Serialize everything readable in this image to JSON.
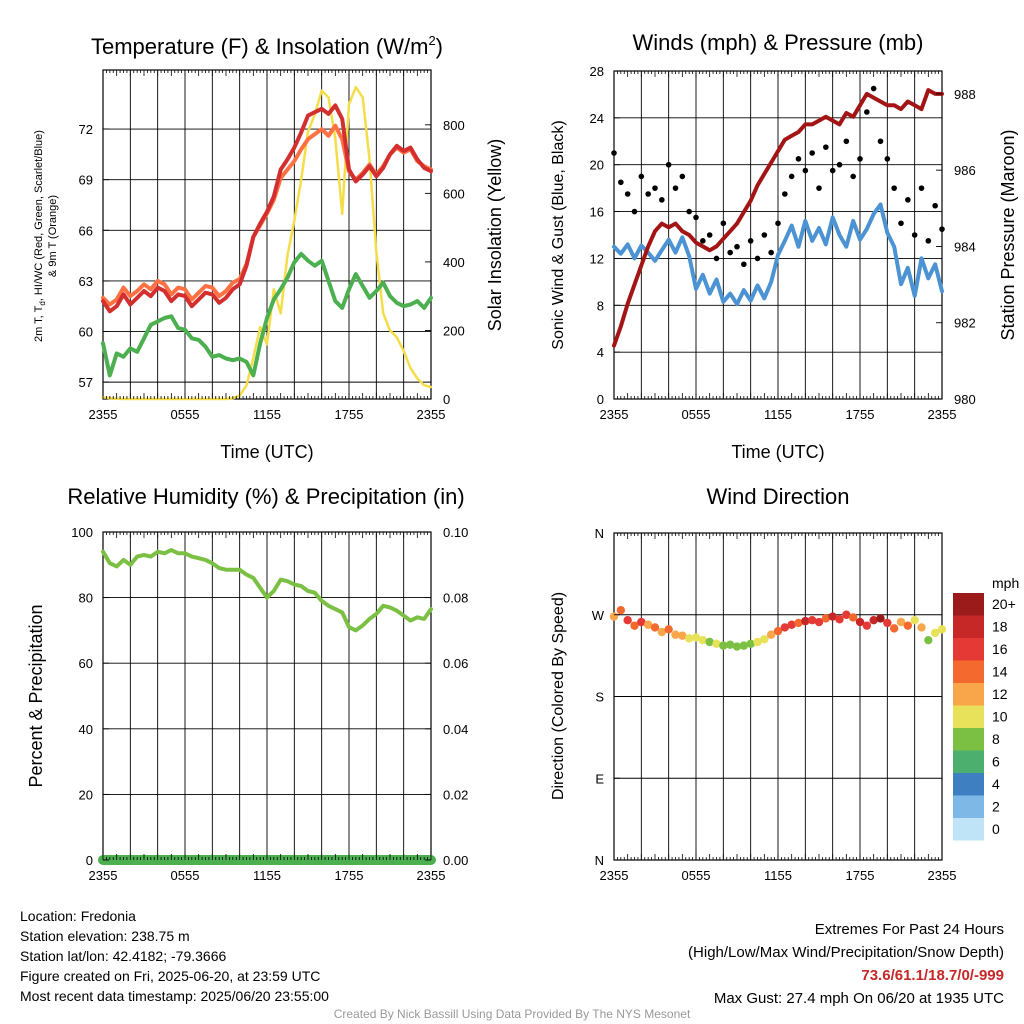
{
  "colors": {
    "temp": "#d32f2f",
    "dewpoint": "#4caf50",
    "heat_index": "#ff7043",
    "nine_m_temp": "#ff8c1a",
    "solar": "#f5dd4a",
    "wind": "#4b93d2",
    "gust": "#000000",
    "pressure": "#a31515",
    "rh": "#7bc043",
    "precip": "#4caf50"
  },
  "time_ticks": [
    "2355",
    "0555",
    "1155",
    "1755",
    "2355"
  ],
  "time_axis_label": "Time (UTC)",
  "chart_data": [
    {
      "type": "line",
      "title": "Temperature (F) & Insolation (W/m",
      "title_sup": "2",
      "title_close": ")",
      "xlabel": "Time (UTC)",
      "ylabel": "2m T, T",
      "ylabel_sub": "d",
      "ylabel_rest": ", HI/WC (Red, Green, Scarlet/Blue)",
      "ylabel_line2": "& 9m T (Orange)",
      "y2label": "Solar Insolation (Yellow)",
      "ylim": [
        56,
        75.5
      ],
      "yticks": [
        57,
        60,
        63,
        66,
        69,
        72
      ],
      "y2lim": [
        0,
        960
      ],
      "y2ticks": [
        0,
        200,
        400,
        600,
        800
      ],
      "x_hours": [
        0,
        0.5,
        1,
        1.5,
        2,
        2.5,
        3,
        3.5,
        4,
        4.5,
        5,
        5.5,
        6,
        6.5,
        7,
        7.5,
        8,
        8.5,
        9,
        9.5,
        10,
        10.5,
        11,
        11.5,
        12,
        12.5,
        13,
        13.5,
        14,
        14.5,
        15,
        15.5,
        16,
        16.5,
        17,
        17.5,
        18,
        18.5,
        19,
        19.5,
        20,
        20.5,
        21,
        21.5,
        22,
        22.5,
        23,
        23.5,
        24
      ],
      "series": [
        {
          "name": "2m T",
          "axis": "left",
          "colorKey": "temp",
          "width": 4,
          "values": [
            61.8,
            61.2,
            61.5,
            62.2,
            61.6,
            62.0,
            62.4,
            62.1,
            62.6,
            62.4,
            61.8,
            62.2,
            62.1,
            61.5,
            61.9,
            62.3,
            62.2,
            61.7,
            62.0,
            62.5,
            62.8,
            63.9,
            65.6,
            66.4,
            67.1,
            68.0,
            69.6,
            70.2,
            70.9,
            71.8,
            72.8,
            73.0,
            73.2,
            72.9,
            73.4,
            72.6,
            69.6,
            68.9,
            69.3,
            69.8,
            69.2,
            69.7,
            70.5,
            71.0,
            70.7,
            70.9,
            70.2,
            69.7,
            69.5
          ]
        },
        {
          "name": "Heat Index",
          "axis": "left",
          "colorKey": "heat_index",
          "width": 4,
          "values": [
            62.0,
            61.6,
            61.9,
            62.6,
            62.1,
            62.4,
            62.8,
            62.5,
            63.0,
            62.8,
            62.2,
            62.6,
            62.5,
            61.9,
            62.3,
            62.7,
            62.6,
            62.1,
            62.4,
            62.9,
            63.1,
            64.0,
            65.6,
            66.3,
            67.0,
            67.8,
            69.1,
            69.6,
            70.1,
            70.8,
            71.4,
            71.7,
            72.0,
            71.6,
            72.2,
            71.4,
            69.5,
            69.0,
            69.4,
            69.9,
            69.3,
            69.8,
            70.5,
            70.9,
            70.6,
            70.8,
            70.1,
            69.8,
            69.6
          ]
        },
        {
          "name": "Dewpoint",
          "axis": "left",
          "colorKey": "dewpoint",
          "width": 4,
          "values": [
            59.3,
            57.4,
            58.7,
            58.5,
            59.0,
            58.8,
            59.6,
            60.4,
            60.6,
            60.8,
            60.9,
            60.2,
            60.1,
            59.6,
            59.5,
            59.1,
            58.5,
            58.6,
            58.4,
            58.3,
            58.4,
            58.2,
            57.4,
            59.3,
            60.8,
            61.9,
            62.5,
            63.2,
            64.1,
            64.6,
            64.2,
            63.9,
            64.2,
            63.0,
            61.8,
            61.4,
            62.5,
            63.4,
            62.7,
            62.0,
            62.4,
            62.9,
            62.1,
            61.7,
            61.5,
            61.6,
            61.8,
            61.4,
            62.0
          ]
        },
        {
          "name": "Solar",
          "axis": "right",
          "colorKey": "solar",
          "width": 2.5,
          "values": [
            5,
            2,
            1,
            0,
            0,
            0,
            0,
            0,
            0,
            0,
            0,
            0,
            0,
            0,
            0,
            0,
            0,
            0,
            0,
            2,
            10,
            40,
            120,
            210,
            160,
            320,
            250,
            420,
            520,
            640,
            780,
            830,
            900,
            880,
            760,
            540,
            860,
            910,
            880,
            700,
            430,
            250,
            200,
            180,
            140,
            90,
            60,
            40,
            35
          ]
        }
      ]
    },
    {
      "type": "line",
      "title": "Winds (mph) & Pressure (mb)",
      "xlabel": "Time (UTC)",
      "ylabel": "Sonic Wind & Gust (Blue, Black)",
      "y2label": "Station Pressure (Maroon)",
      "ylim": [
        0,
        28
      ],
      "yticks": [
        0,
        4,
        8,
        12,
        16,
        20,
        24,
        28
      ],
      "y2lim": [
        980,
        988.6
      ],
      "y2ticks": [
        980,
        982,
        984,
        986,
        988
      ],
      "x_hours": [
        0,
        0.5,
        1,
        1.5,
        2,
        2.5,
        3,
        3.5,
        4,
        4.5,
        5,
        5.5,
        6,
        6.5,
        7,
        7.5,
        8,
        8.5,
        9,
        9.5,
        10,
        10.5,
        11,
        11.5,
        12,
        12.5,
        13,
        13.5,
        14,
        14.5,
        15,
        15.5,
        16,
        16.5,
        17,
        17.5,
        18,
        18.5,
        19,
        19.5,
        20,
        20.5,
        21,
        21.5,
        22,
        22.5,
        23,
        23.5,
        24
      ],
      "series": [
        {
          "name": "Sonic Wind",
          "axis": "left",
          "colorKey": "wind",
          "width": 4,
          "values": [
            13.0,
            12.4,
            13.2,
            12.0,
            13.1,
            12.5,
            11.8,
            12.7,
            13.6,
            12.5,
            13.8,
            12.2,
            9.4,
            10.6,
            9.0,
            10.2,
            8.3,
            9.0,
            8.1,
            9.3,
            8.4,
            9.7,
            8.6,
            10.0,
            12.3,
            13.5,
            14.8,
            13.0,
            15.2,
            13.5,
            14.6,
            13.2,
            15.5,
            14.0,
            13.0,
            15.2,
            13.6,
            14.5,
            15.8,
            16.6,
            14.2,
            13.0,
            9.8,
            11.2,
            8.8,
            12.0,
            10.3,
            11.5,
            9.2
          ]
        },
        {
          "name": "Gust",
          "axis": "left",
          "colorKey": "gust",
          "mode": "dots",
          "values": [
            21.0,
            18.5,
            17.5,
            16.0,
            19.0,
            17.5,
            18.0,
            17.0,
            20.0,
            18.0,
            19.0,
            16.0,
            15.5,
            13.5,
            14.0,
            12.0,
            15.0,
            12.5,
            13.0,
            11.5,
            13.5,
            12.0,
            14.0,
            12.5,
            15.0,
            17.5,
            19.0,
            20.5,
            19.5,
            21.0,
            18.0,
            21.5,
            19.5,
            20.0,
            22.0,
            19.0,
            20.5,
            24.5,
            26.5,
            22.0,
            20.5,
            18.0,
            15.0,
            17.0,
            14.0,
            18.0,
            13.5,
            16.5,
            14.5
          ]
        },
        {
          "name": "Pressure",
          "axis": "right",
          "colorKey": "pressure",
          "width": 4,
          "values": [
            981.4,
            981.9,
            982.5,
            983.0,
            983.5,
            984.0,
            984.4,
            984.6,
            984.5,
            984.6,
            984.4,
            984.3,
            984.1,
            984.0,
            983.9,
            984.0,
            984.2,
            984.4,
            984.6,
            984.9,
            985.2,
            985.6,
            985.9,
            986.2,
            986.5,
            986.8,
            986.9,
            987.0,
            987.2,
            987.2,
            987.3,
            987.4,
            987.3,
            987.2,
            987.5,
            987.4,
            987.7,
            988.0,
            987.9,
            987.8,
            987.7,
            987.7,
            987.6,
            987.8,
            987.7,
            987.6,
            988.1,
            988.0,
            988.0
          ]
        }
      ]
    },
    {
      "type": "line",
      "title": "Relative Humidity (%) & Precipitation (in)",
      "xlabel": "",
      "ylabel": "Percent & Precipitation",
      "ylim": [
        0,
        100
      ],
      "yticks": [
        0,
        20,
        40,
        60,
        80,
        100
      ],
      "y2lim": [
        0,
        0.1
      ],
      "y2ticks": [
        "0.00",
        "0.02",
        "0.04",
        "0.06",
        "0.08",
        "0.10"
      ],
      "x_hours": [
        0,
        0.5,
        1,
        1.5,
        2,
        2.5,
        3,
        3.5,
        4,
        4.5,
        5,
        5.5,
        6,
        6.5,
        7,
        7.5,
        8,
        8.5,
        9,
        9.5,
        10,
        10.5,
        11,
        11.5,
        12,
        12.5,
        13,
        13.5,
        14,
        14.5,
        15,
        15.5,
        16,
        16.5,
        17,
        17.5,
        18,
        18.5,
        19,
        19.5,
        20,
        20.5,
        21,
        21.5,
        22,
        22.5,
        23,
        23.5,
        24
      ],
      "series": [
        {
          "name": "RH",
          "axis": "left",
          "colorKey": "rh",
          "width": 4,
          "values": [
            94.0,
            90.5,
            89.5,
            91.5,
            90.0,
            92.5,
            93.0,
            92.5,
            94.0,
            93.5,
            94.5,
            93.5,
            93.5,
            92.5,
            92.0,
            91.5,
            90.5,
            89.0,
            88.5,
            88.5,
            88.5,
            87.0,
            86.0,
            83.0,
            80.0,
            82.0,
            85.5,
            85.0,
            84.0,
            83.5,
            82.0,
            81.5,
            79.0,
            77.5,
            76.5,
            75.5,
            71.0,
            70.0,
            71.5,
            73.5,
            75.0,
            77.5,
            77.0,
            76.0,
            74.5,
            73.0,
            74.0,
            73.5,
            76.5
          ]
        },
        {
          "name": "Precipitation",
          "axis": "left",
          "colorKey": "precip",
          "width": 10,
          "values": [
            0,
            0,
            0,
            0,
            0,
            0,
            0,
            0,
            0,
            0,
            0,
            0,
            0,
            0,
            0,
            0,
            0,
            0,
            0,
            0,
            0,
            0,
            0,
            0,
            0,
            0,
            0,
            0,
            0,
            0,
            0,
            0,
            0,
            0,
            0,
            0,
            0,
            0,
            0,
            0,
            0,
            0,
            0,
            0,
            0,
            0,
            0,
            0,
            0
          ]
        }
      ]
    },
    {
      "type": "scatter",
      "title": "Wind Direction",
      "xlabel": "",
      "ylabel": "Direction (Colored By Speed)",
      "ylim": [
        0,
        360
      ],
      "yticks": [
        "N",
        "E",
        "S",
        "W",
        "N"
      ],
      "x_hours": [
        0,
        0.5,
        1,
        1.5,
        2,
        2.5,
        3,
        3.5,
        4,
        4.5,
        5,
        5.5,
        6,
        6.5,
        7,
        7.5,
        8,
        8.5,
        9,
        9.5,
        10,
        10.5,
        11,
        11.5,
        12,
        12.5,
        13,
        13.5,
        14,
        14.5,
        15,
        15.5,
        16,
        16.5,
        17,
        17.5,
        18,
        18.5,
        19,
        19.5,
        20,
        20.5,
        21,
        21.5,
        22,
        22.5,
        23,
        23.5,
        24
      ],
      "direction_deg": [
        268,
        275,
        264,
        258,
        262,
        259,
        256,
        251,
        254,
        248,
        247,
        244,
        245,
        242,
        240,
        238,
        236,
        237,
        235,
        236,
        238,
        240,
        243,
        248,
        252,
        256,
        259,
        261,
        263,
        264,
        262,
        266,
        268,
        265,
        270,
        267,
        262,
        258,
        264,
        266,
        261,
        255,
        262,
        258,
        264,
        256,
        242,
        250,
        254
      ],
      "speed_mph": [
        12,
        14,
        16,
        13,
        15,
        12,
        14,
        12,
        13,
        11,
        12,
        10,
        9,
        10,
        8,
        9,
        8,
        7,
        8,
        8,
        7,
        9,
        9,
        11,
        13,
        15,
        16,
        14,
        17,
        15,
        16,
        14,
        17,
        15,
        16,
        14,
        18,
        15,
        17,
        19,
        16,
        14,
        11,
        13,
        10,
        12,
        8,
        10,
        9
      ],
      "legend_title": "mph",
      "legend_labels": [
        "20+",
        "18",
        "16",
        "14",
        "12",
        "10",
        "8",
        "6",
        "4",
        "2",
        "0"
      ],
      "legend_colors": [
        "#9b1b1b",
        "#c62828",
        "#e53935",
        "#f4692d",
        "#f9a54a",
        "#e8e15a",
        "#7bc043",
        "#4caf6e",
        "#3e7fc1",
        "#7eb8e6",
        "#bfe3f7"
      ]
    }
  ],
  "info": {
    "location": "Location: Fredonia",
    "elevation": "Station elevation: 238.75 m",
    "latlon": "Station lat/lon: 42.4182; -79.3666",
    "created": "Figure created on Fri, 2025-06-20, at 23:59 UTC",
    "recent": "Most recent data timestamp: 2025/06/20 23:55:00"
  },
  "extremes": {
    "title": "Extremes For Past 24 Hours",
    "subtitle": "(High/Low/Max Wind/Precipitation/Snow Depth)",
    "values": "73.6/61.1/18.7/0/-999",
    "max_gust": "Max Gust: 27.4 mph On 06/20 at 1935 UTC"
  },
  "credit": "Created By Nick Bassill Using Data Provided By The NYS Mesonet"
}
